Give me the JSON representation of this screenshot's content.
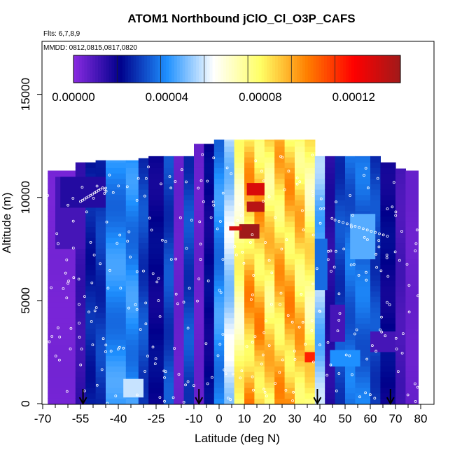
{
  "chart_data": {
    "type": "heatmap",
    "title": "ATOM1 Northbound jClO_Cl_O3P_CAFS",
    "notes": [
      "Flts: 6,7,8,9",
      "MMDD: 0812,0815,0817,0820"
    ],
    "xlabel": "Latitude (deg N)",
    "ylabel": "Altitude (m)",
    "xlim": [
      -70,
      80
    ],
    "ylim": [
      0,
      17500
    ],
    "x_ticks": [
      -70,
      -55,
      -40,
      -25,
      -10,
      0,
      10,
      20,
      30,
      40,
      50,
      60,
      70,
      80
    ],
    "x_ticks_minor": [
      -65,
      -60,
      -50,
      -45,
      -35,
      -30,
      -20,
      -15,
      -5,
      5,
      15,
      25,
      35,
      45,
      55,
      65,
      75
    ],
    "y_ticks": [
      0,
      5000,
      10000,
      15000
    ],
    "colorbar": {
      "ticks": [
        "0.00000",
        "0.00004",
        "0.00008",
        "0.00012"
      ],
      "tick_values": [
        0,
        4e-05,
        8e-05,
        0.00012
      ],
      "range": [
        0,
        0.00014
      ],
      "colors": [
        "#8a2be2",
        "#00008b",
        "#1e90ff",
        "#ffffff",
        "#ffff66",
        "#ff7f00",
        "#ff0000",
        "#a01a1a"
      ]
    },
    "arrows_latitude": [
      -54,
      -8,
      39,
      68
    ],
    "columns": [
      {
        "x": [
          -68,
          -57
        ],
        "top": 11300,
        "value": 3e-06
      },
      {
        "x": [
          -57,
          -53
        ],
        "top": 11700,
        "value": 1.2e-05
      },
      {
        "x": [
          -53,
          -49
        ],
        "top": 11700,
        "value": 2.5e-05
      },
      {
        "x": [
          -49,
          -45
        ],
        "top": 11800,
        "value": 2.8e-05
      },
      {
        "x": [
          -45,
          -37
        ],
        "top": 11800,
        "value": 4e-05
      },
      {
        "x": [
          -37,
          -32
        ],
        "top": 11800,
        "value": 4e-05
      },
      {
        "x": [
          -32,
          -28
        ],
        "top": 11900,
        "value": 3e-05
      },
      {
        "x": [
          -28,
          -22
        ],
        "top": 12000,
        "value": 2e-05
      },
      {
        "x": [
          -22,
          -18
        ],
        "top": 12000,
        "value": 3e-05
      },
      {
        "x": [
          -18,
          -14
        ],
        "top": 12000,
        "value": 5e-06
      },
      {
        "x": [
          -14,
          -10
        ],
        "top": 12000,
        "value": 3e-05
      },
      {
        "x": [
          -10,
          -6
        ],
        "top": 12600,
        "value": 5e-06
      },
      {
        "x": [
          -6,
          -2
        ],
        "top": 12600,
        "value": 2e-05
      },
      {
        "x": [
          -2,
          2
        ],
        "top": 12800,
        "value": 4e-05
      },
      {
        "x": [
          2,
          6
        ],
        "top": 12800,
        "value": 5.5e-05
      },
      {
        "x": [
          6,
          10
        ],
        "top": 12800,
        "value": 7.5e-05
      },
      {
        "x": [
          10,
          14
        ],
        "top": 12800,
        "value": 9.2e-05
      },
      {
        "x": [
          14,
          18
        ],
        "top": 12800,
        "value": 9.2e-05
      },
      {
        "x": [
          18,
          22
        ],
        "top": 12800,
        "value": 8.5e-05
      },
      {
        "x": [
          22,
          26
        ],
        "top": 12800,
        "value": 9e-05
      },
      {
        "x": [
          26,
          30
        ],
        "top": 12800,
        "value": 9.2e-05
      },
      {
        "x": [
          30,
          34
        ],
        "top": 12800,
        "value": 8.8e-05
      },
      {
        "x": [
          34,
          38
        ],
        "top": 12800,
        "value": 8e-05
      },
      {
        "x": [
          38,
          42
        ],
        "top": 12000,
        "value": 5e-05
      },
      {
        "x": [
          42,
          46
        ],
        "top": 12000,
        "value": 1.5e-05
      },
      {
        "x": [
          46,
          50
        ],
        "top": 12000,
        "value": 3e-05
      },
      {
        "x": [
          50,
          54
        ],
        "top": 12000,
        "value": 3.5e-05
      },
      {
        "x": [
          54,
          60
        ],
        "top": 12000,
        "value": 3.5e-05
      },
      {
        "x": [
          60,
          64
        ],
        "top": 12000,
        "value": 3e-05
      },
      {
        "x": [
          64,
          70
        ],
        "top": 11700,
        "value": 2e-05
      },
      {
        "x": [
          70,
          74
        ],
        "top": 11400,
        "value": 1e-05
      },
      {
        "x": [
          74,
          79
        ],
        "top": 11300,
        "value": 5e-06
      }
    ],
    "patches": [
      {
        "x": [
          11,
          18
        ],
        "y": [
          10100,
          10700
        ],
        "value": 0.000128
      },
      {
        "x": [
          11,
          18
        ],
        "y": [
          9300,
          9800
        ],
        "value": 0.000135
      },
      {
        "x": [
          8,
          16
        ],
        "y": [
          8000,
          8700
        ],
        "value": 0.00014
      },
      {
        "x": [
          4,
          9
        ],
        "y": [
          8400,
          8600
        ],
        "value": 0.00013
      },
      {
        "x": [
          34,
          38
        ],
        "y": [
          2000,
          2500
        ],
        "value": 0.000115
      },
      {
        "x": [
          -65,
          -53
        ],
        "y": [
          7500,
          11000
        ],
        "value": 1e-05
      },
      {
        "x": [
          -63,
          -45
        ],
        "y": [
          9500,
          11000
        ],
        "value": 1.5e-05
      },
      {
        "x": [
          38,
          43
        ],
        "y": [
          5500,
          8000
        ],
        "value": 3.5e-05
      },
      {
        "x": [
          44,
          50
        ],
        "y": [
          3000,
          4800
        ],
        "value": 1e-05
      },
      {
        "x": [
          44,
          56
        ],
        "y": [
          1800,
          2600
        ],
        "value": 4e-05
      },
      {
        "x": [
          60,
          70
        ],
        "y": [
          2500,
          3500
        ],
        "value": 1e-05
      },
      {
        "x": [
          52,
          62
        ],
        "y": [
          7000,
          9200
        ],
        "value": 4.5e-05
      },
      {
        "x": [
          -38,
          -30
        ],
        "y": [
          300,
          1200
        ],
        "value": 5.5e-05
      }
    ]
  }
}
